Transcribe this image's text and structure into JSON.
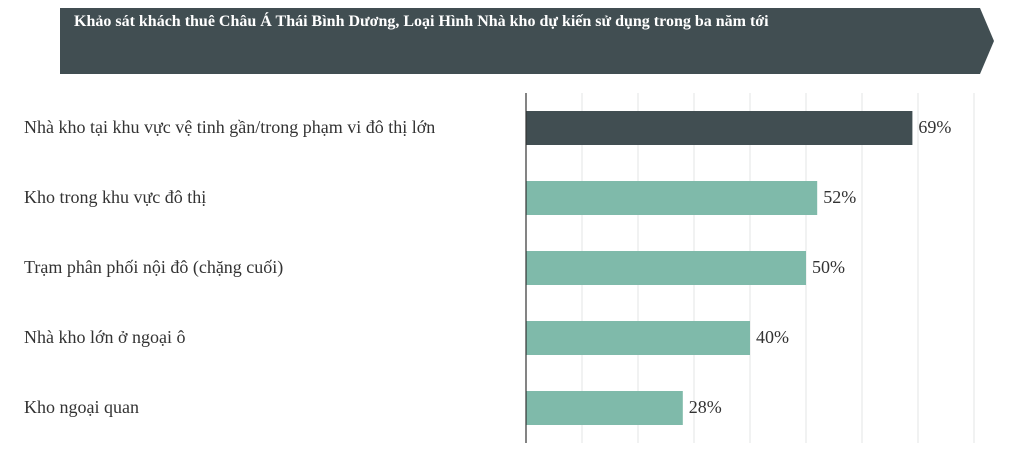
{
  "chart_data": {
    "type": "bar",
    "orientation": "horizontal",
    "title": "Khảo sát khách thuê Châu Á Thái Bình Dương, Loại Hình Nhà kho dự kiến sử dụng trong ba năm tới",
    "categories": [
      "Nhà kho tại khu vực vệ tinh gần/trong phạm vi đô thị lớn",
      "Kho trong khu vực đô thị",
      "Trạm phân phối nội đô (chặng cuối)",
      "Nhà kho lớn ở ngoại ô",
      "Kho ngoại quan"
    ],
    "values": [
      69,
      52,
      50,
      40,
      28
    ],
    "value_labels": [
      "69%",
      "52%",
      "50%",
      "40%",
      "28%"
    ],
    "colors": [
      "#414e52",
      "#7fbaaa",
      "#7fbaaa",
      "#7fbaaa",
      "#7fbaaa"
    ],
    "xlim": [
      0,
      80
    ],
    "xticks": [
      0,
      10,
      20,
      30,
      40,
      50,
      60,
      70,
      80
    ],
    "grid": true
  }
}
